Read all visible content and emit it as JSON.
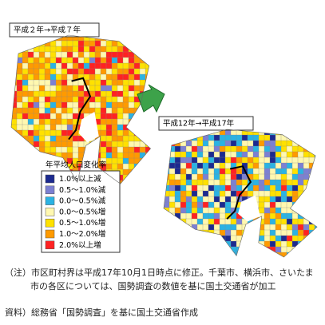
{
  "maps": [
    {
      "title": "平成２年→平成７年"
    },
    {
      "title": "平成12年→平成17年"
    }
  ],
  "legend": {
    "title": "年平均人口変化率",
    "items": [
      {
        "label": "1.0%以上減",
        "color": "#1c2a8f"
      },
      {
        "label": "0.5～1.0%減",
        "color": "#7c80d2"
      },
      {
        "label": "0.0～0.5%減",
        "color": "#2bb3e3"
      },
      {
        "label": "0.0～0.5%増",
        "color": "#fff8b0"
      },
      {
        "label": "0.5～1.0%増",
        "color": "#ffe100"
      },
      {
        "label": "1.0～2.0%増",
        "color": "#ff9a00"
      },
      {
        "label": "2.0%以上増",
        "color": "#ff2222"
      }
    ]
  },
  "notes": [
    "（注）市区町村界は平成17年10月1日時点に修正。千葉市、横浜市、さいたま市の各区については、国勢調査の数値を基に国土交通省が加工",
    "資料）総務省「国勢調査」を基に国土交通省作成"
  ]
}
